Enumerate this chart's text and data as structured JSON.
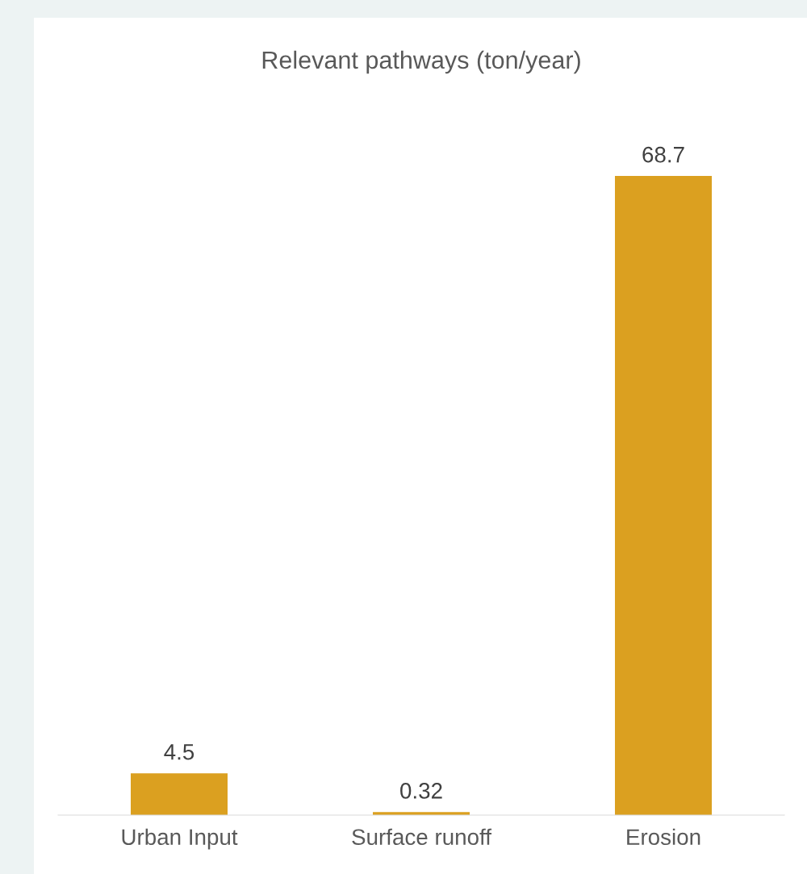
{
  "chart_data": {
    "type": "bar",
    "title": "Relevant pathways (ton/year)",
    "categories": [
      "Urban Input",
      "Surface runoff",
      "Erosion"
    ],
    "values": [
      4.5,
      0.32,
      68.7
    ],
    "color": "#dba020",
    "data_labels": true
  }
}
